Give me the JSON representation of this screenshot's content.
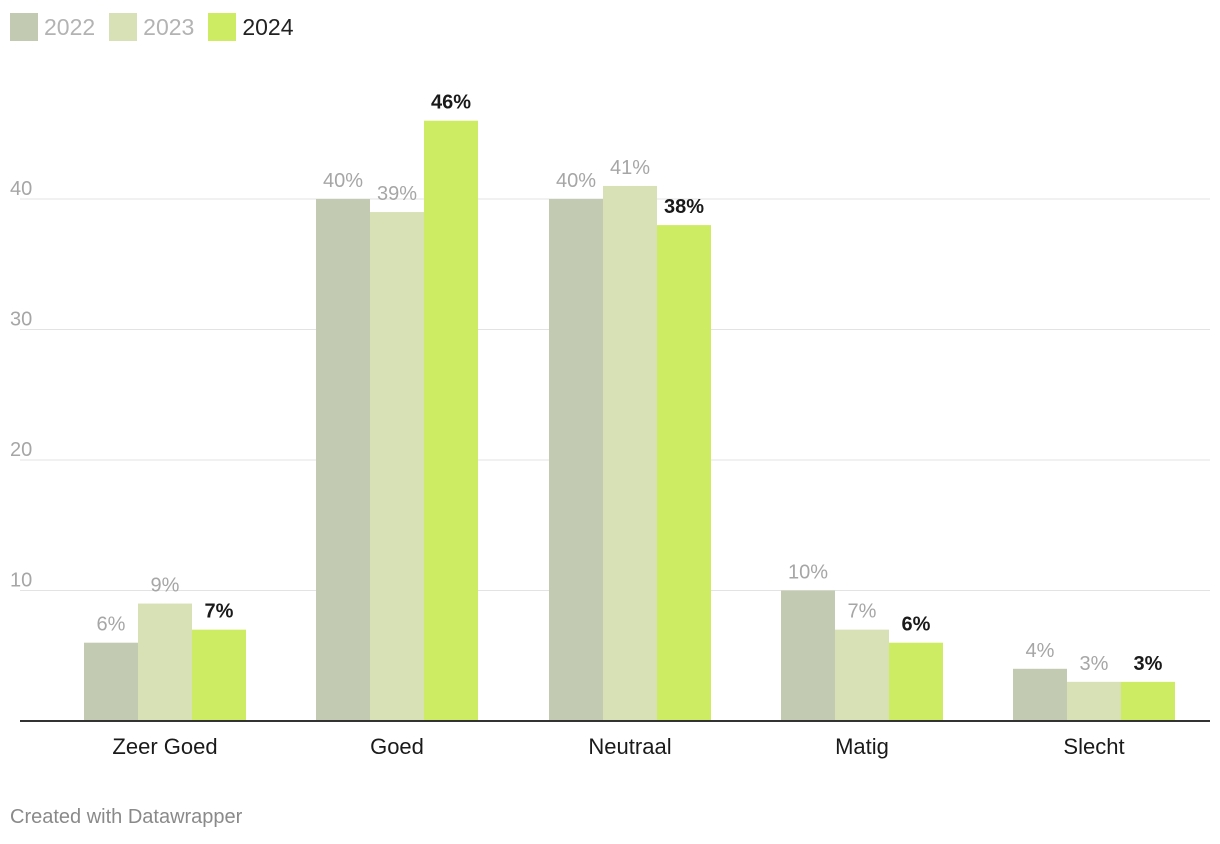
{
  "footer": {
    "credit": "Created with Datawrapper"
  },
  "legend": [
    {
      "label": "2022",
      "color": "#c2cbb1",
      "text_color": "#b3b3b3"
    },
    {
      "label": "2023",
      "color": "#d7e1b5",
      "text_color": "#b3b3b3"
    },
    {
      "label": "2024",
      "color": "#cdeb63",
      "text_color": "#222222"
    }
  ],
  "chart_data": {
    "type": "bar",
    "categories": [
      "Zeer Goed",
      "Goed",
      "Neutraal",
      "Matig",
      "Slecht"
    ],
    "series": [
      {
        "name": "2022",
        "color": "#c2cbb1",
        "values": [
          6,
          40,
          40,
          10,
          4
        ],
        "labels": [
          "6%",
          "40%",
          "40%",
          "10%",
          "4%"
        ]
      },
      {
        "name": "2023",
        "color": "#d7e1b5",
        "values": [
          9,
          39,
          41,
          7,
          3
        ],
        "labels": [
          "9%",
          "39%",
          "41%",
          "7%",
          "3%"
        ]
      },
      {
        "name": "2024",
        "color": "#cdeb63",
        "values": [
          7,
          46,
          38,
          6,
          3
        ],
        "labels": [
          "7%",
          "46%",
          "38%",
          "6%",
          "3%"
        ]
      }
    ],
    "yticks": [
      "10",
      "20",
      "30",
      "40"
    ],
    "ylim": [
      0,
      50
    ],
    "grid": true,
    "legend_position": "top-left",
    "title": "",
    "xlabel": "",
    "ylabel": ""
  }
}
